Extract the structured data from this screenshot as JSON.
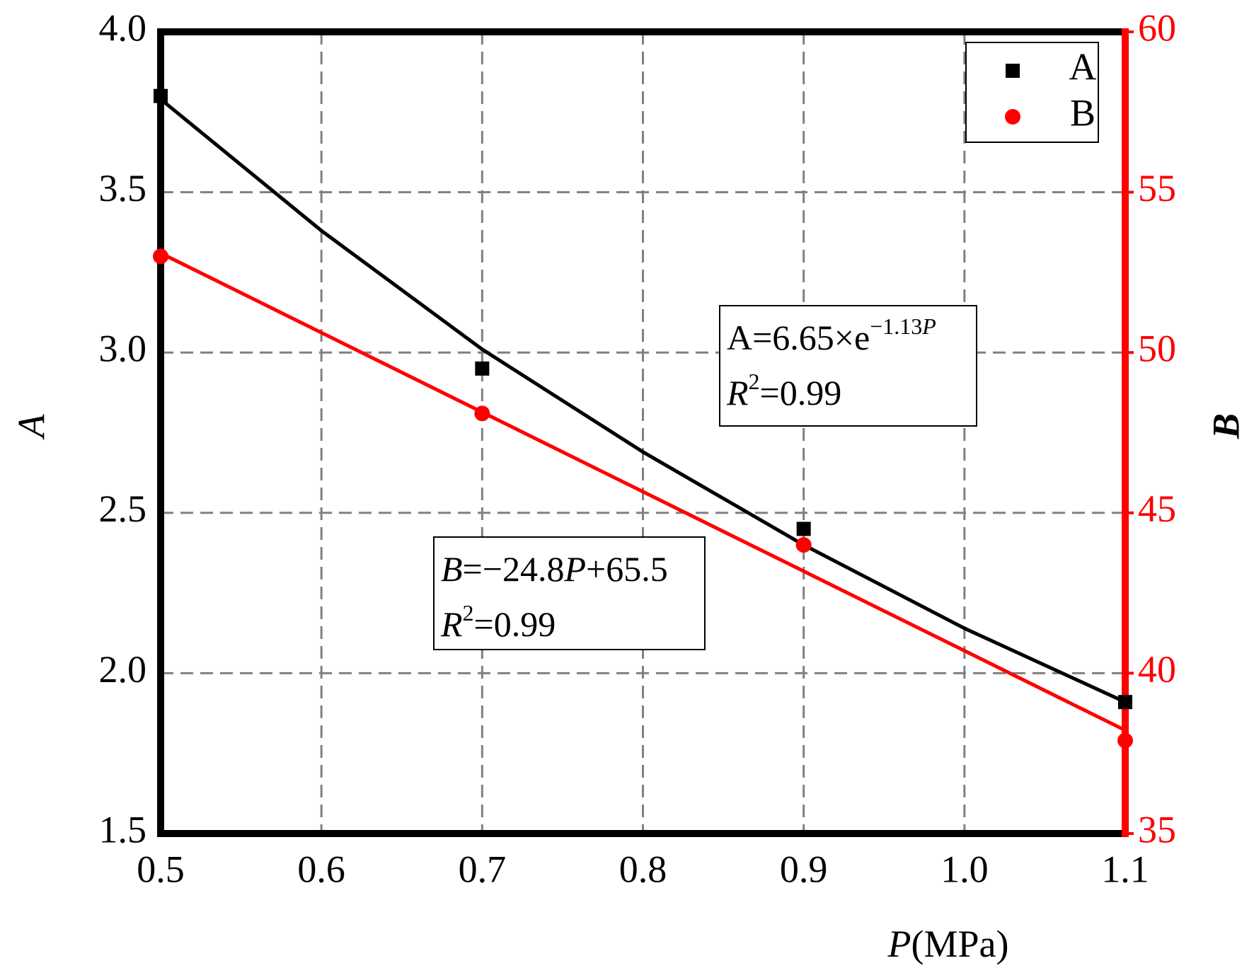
{
  "chart_data": {
    "type": "scatter",
    "x": [
      0.5,
      0.7,
      0.9,
      1.1
    ],
    "series": [
      {
        "name": "A",
        "color": "#000000",
        "marker": "square",
        "values": [
          3.8,
          2.95,
          2.45,
          1.91
        ],
        "fit": [
          3.79,
          3.38,
          3.01,
          2.69,
          2.4,
          2.14,
          1.91
        ]
      },
      {
        "name": "B",
        "color": "#ff0000",
        "marker": "circle",
        "axis": "y2",
        "values": [
          53.0,
          48.1,
          44.0,
          37.9
        ],
        "fit": [
          53.1,
          50.62,
          48.14,
          45.66,
          43.18,
          40.7,
          38.22
        ]
      }
    ],
    "fit_x": [
      0.5,
      0.6,
      0.7,
      0.8,
      0.9,
      1.0,
      1.1
    ],
    "xlabel": [
      {
        "text": "P",
        "style": "italic"
      },
      {
        "text": "(MPa)",
        "style": "normal"
      }
    ],
    "ylabel": "A",
    "y2label": "B",
    "xlim": [
      0.5,
      1.1
    ],
    "xticks": [
      0.5,
      0.6,
      0.7,
      0.8,
      0.9,
      {
        "value": 1,
        "label": "1.0"
      },
      1.1
    ],
    "ylim": [
      1.5,
      4.0
    ],
    "yticks": [
      1.5,
      {
        "value": 2,
        "label": "2.0"
      },
      2.5,
      {
        "value": 3,
        "label": "3.0"
      },
      3.5,
      {
        "value": 4,
        "label": "4.0"
      }
    ],
    "y2lim": [
      35,
      60
    ],
    "y2ticks": [
      35,
      40,
      45,
      50,
      55,
      60
    ],
    "grid": true,
    "legend": "upper right",
    "annotations": [
      [
        [
          {
            "text": "A=6.65×e",
            "style": "normal"
          },
          {
            "text": "−1.13",
            "style": "sup"
          },
          {
            "text": "P",
            "style": "sup-italic"
          }
        ],
        [
          {
            "text": "R",
            "style": "italic"
          },
          {
            "text": "2",
            "style": "sup"
          },
          {
            "text": "=0.99",
            "style": "normal"
          }
        ]
      ],
      [
        [
          {
            "text": "B",
            "style": "italic"
          },
          {
            "text": "=−24.8",
            "style": "normal"
          },
          {
            "text": "P",
            "style": "italic"
          },
          {
            "text": "+65.5",
            "style": "normal"
          }
        ],
        [
          {
            "text": "R",
            "style": "italic"
          },
          {
            "text": "2",
            "style": "sup"
          },
          {
            "text": "=0.99",
            "style": "normal"
          }
        ]
      ]
    ]
  }
}
